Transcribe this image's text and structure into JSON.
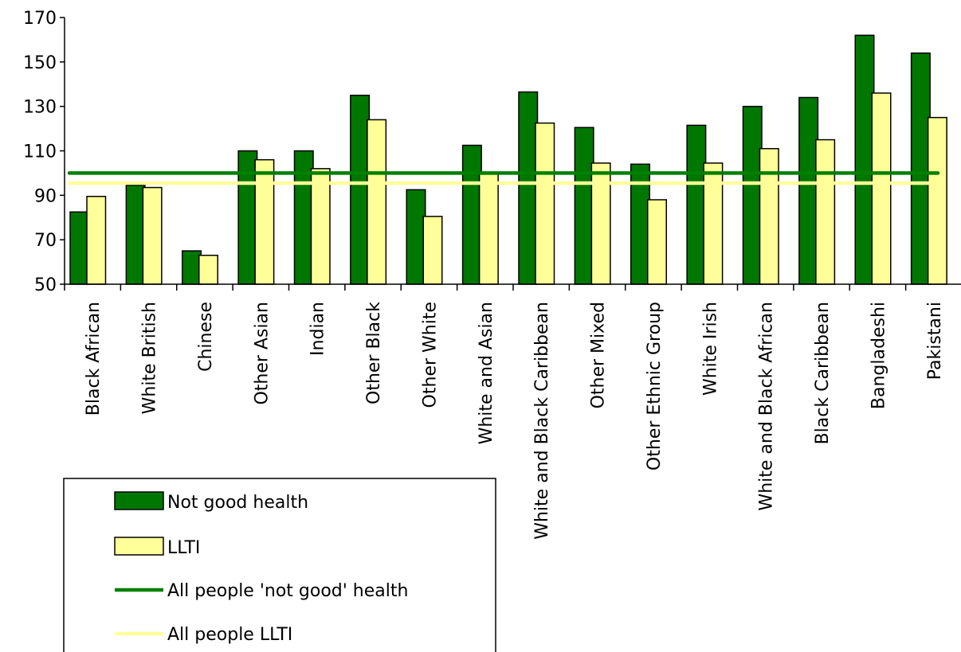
{
  "chart_data": {
    "type": "bar",
    "categories": [
      "Black African",
      "White British",
      "Chinese",
      "Other Asian",
      "Indian",
      "Other Black",
      "Other White",
      "White and Asian",
      "White and Black Caribbean",
      "Other Mixed",
      "Other Ethnic Group",
      "White Irish",
      "White and Black African",
      "Black Caribbean",
      "Bangladeshi",
      "Pakistani"
    ],
    "series": [
      {
        "name": "Not good health",
        "values": [
          82.5,
          94.5,
          65,
          110,
          110,
          135,
          92.5,
          112.5,
          136.5,
          120.5,
          104,
          121.5,
          130,
          134,
          162,
          154
        ],
        "color": "#007700"
      },
      {
        "name": "LLTI",
        "values": [
          89.5,
          93.5,
          63,
          106,
          102,
          124,
          80.5,
          99.5,
          122.5,
          104.5,
          88,
          104.5,
          111,
          115,
          136,
          125
        ],
        "color": "#ffff99"
      }
    ],
    "reference_lines": [
      {
        "name": "All people 'not good' health",
        "value": 100,
        "color": "#008000"
      },
      {
        "name": "All people LLTI",
        "value": 95.5,
        "color": "#ffff99"
      }
    ],
    "ylim": [
      50,
      170
    ],
    "yticks": [
      50,
      70,
      90,
      110,
      130,
      150,
      170
    ],
    "title": "",
    "xlabel": "",
    "ylabel": "",
    "legend_position": "bottom-left",
    "grid": false
  }
}
